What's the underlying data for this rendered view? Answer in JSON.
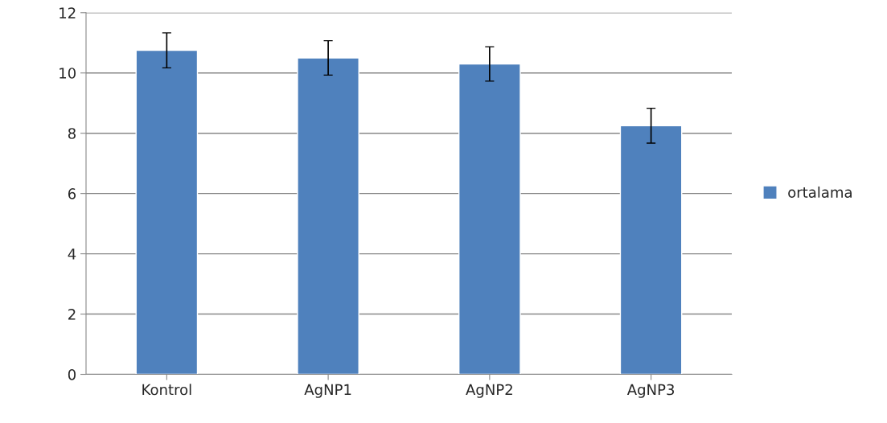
{
  "chart_data": {
    "type": "bar",
    "categories": [
      "Kontrol",
      "AgNP1",
      "AgNP2",
      "AgNP3"
    ],
    "series": [
      {
        "name": "ortalama",
        "color": "#4f81bd",
        "values": [
          10.75,
          10.5,
          10.3,
          8.25
        ],
        "errors": [
          0.58,
          0.57,
          0.57,
          0.58
        ]
      }
    ],
    "ylim": [
      0,
      12
    ],
    "yticks": [
      0,
      2,
      4,
      6,
      8,
      10,
      12
    ],
    "grid": "y",
    "legend": "right"
  }
}
